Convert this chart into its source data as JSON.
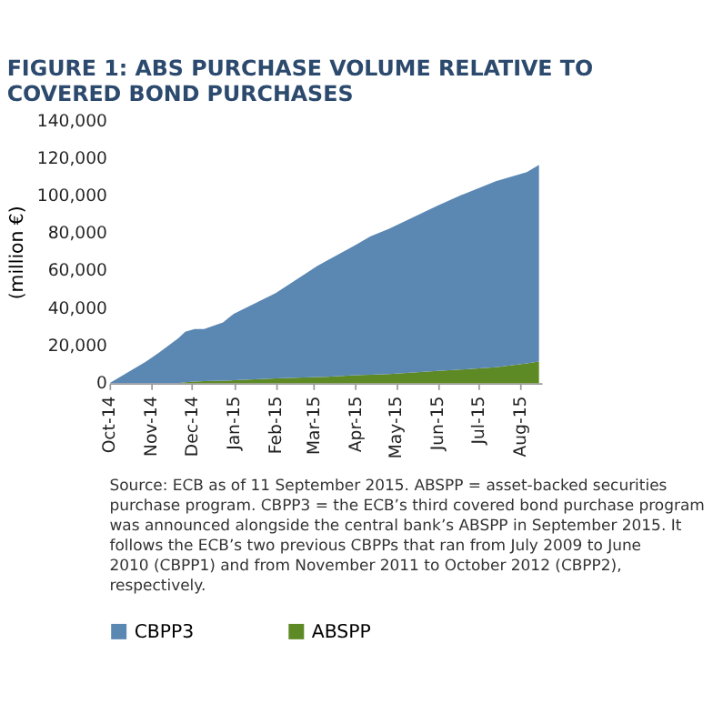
{
  "chart_data": {
    "type": "area",
    "title": "FIGURE 1: ABS PURCHASE VOLUME RELATIVE TO COVERED BOND PURCHASES",
    "ylabel": "(million €)",
    "x": [
      "2014-10-01",
      "2014-10-28",
      "2014-11-07",
      "2014-11-21",
      "2014-11-26",
      "2014-12-03",
      "2014-12-10",
      "2014-12-24",
      "2015-01-01",
      "2015-02-01",
      "2015-03-04",
      "2015-03-11",
      "2015-04-01",
      "2015-04-12",
      "2015-04-26",
      "2015-06-01",
      "2015-06-18",
      "2015-07-14",
      "2015-08-06",
      "2015-08-15"
    ],
    "series": [
      {
        "name": "ABSPP",
        "color": "#5e8a26",
        "values": [
          0,
          0,
          0,
          0,
          500,
          800,
          1000,
          1300,
          1500,
          2500,
          3200,
          3400,
          4200,
          4500,
          4800,
          6500,
          7200,
          8500,
          10500,
          11500
        ]
      },
      {
        "name": "CBPP3",
        "color": "#5b87b3",
        "values": [
          0,
          11500,
          16500,
          24000,
          26900,
          28000,
          27800,
          31100,
          35500,
          45500,
          59400,
          61900,
          69400,
          73700,
          77600,
          88200,
          93000,
          99200,
          102100,
          104900
        ]
      }
    ],
    "stacked": true,
    "xlim": [
      "2014-10-01",
      "2015-08-17"
    ],
    "xticks": [
      {
        "value": "2014-10-01",
        "label": "Oct-14"
      },
      {
        "value": "2014-11-01",
        "label": "Nov-14"
      },
      {
        "value": "2014-12-01",
        "label": "Dec-14"
      },
      {
        "value": "2015-01-01",
        "label": "Jan-15"
      },
      {
        "value": "2015-02-01",
        "label": "Feb-15"
      },
      {
        "value": "2015-03-01",
        "label": "Mar-15"
      },
      {
        "value": "2015-04-01",
        "label": "Apr-15"
      },
      {
        "value": "2015-05-01",
        "label": "May-15"
      },
      {
        "value": "2015-06-01",
        "label": "Jun-15"
      },
      {
        "value": "2015-07-01",
        "label": "Jul-15"
      },
      {
        "value": "2015-08-01",
        "label": "Aug-15"
      }
    ],
    "ylim": [
      0,
      140000
    ],
    "yticks": [
      0,
      {
        "value": 20000,
        "label": "20,000"
      },
      {
        "value": 40000,
        "label": "40,000"
      },
      {
        "value": 60000,
        "label": "60,000"
      },
      {
        "value": 80000,
        "label": "80,000"
      },
      {
        "value": 100000,
        "label": "100,000"
      },
      {
        "value": 120000,
        "label": "120,000"
      },
      {
        "value": 140000,
        "label": "140,000"
      }
    ],
    "grid": false,
    "legend": "bottom",
    "annotations": [
      "Source: ECB as of 11 September 2015. ABSPP = asset-backed securities purchase program. CBPP3 = the ECB’s third covered bond purchase program was announced alongside the central bank’s ABSPP in September 2015. It follows the ECB’s two previous CBPPs that ran from July 2009 to June 2010 (CBPP1) and from November 2011 to October 2012 (CBPP2), respectively."
    ]
  }
}
